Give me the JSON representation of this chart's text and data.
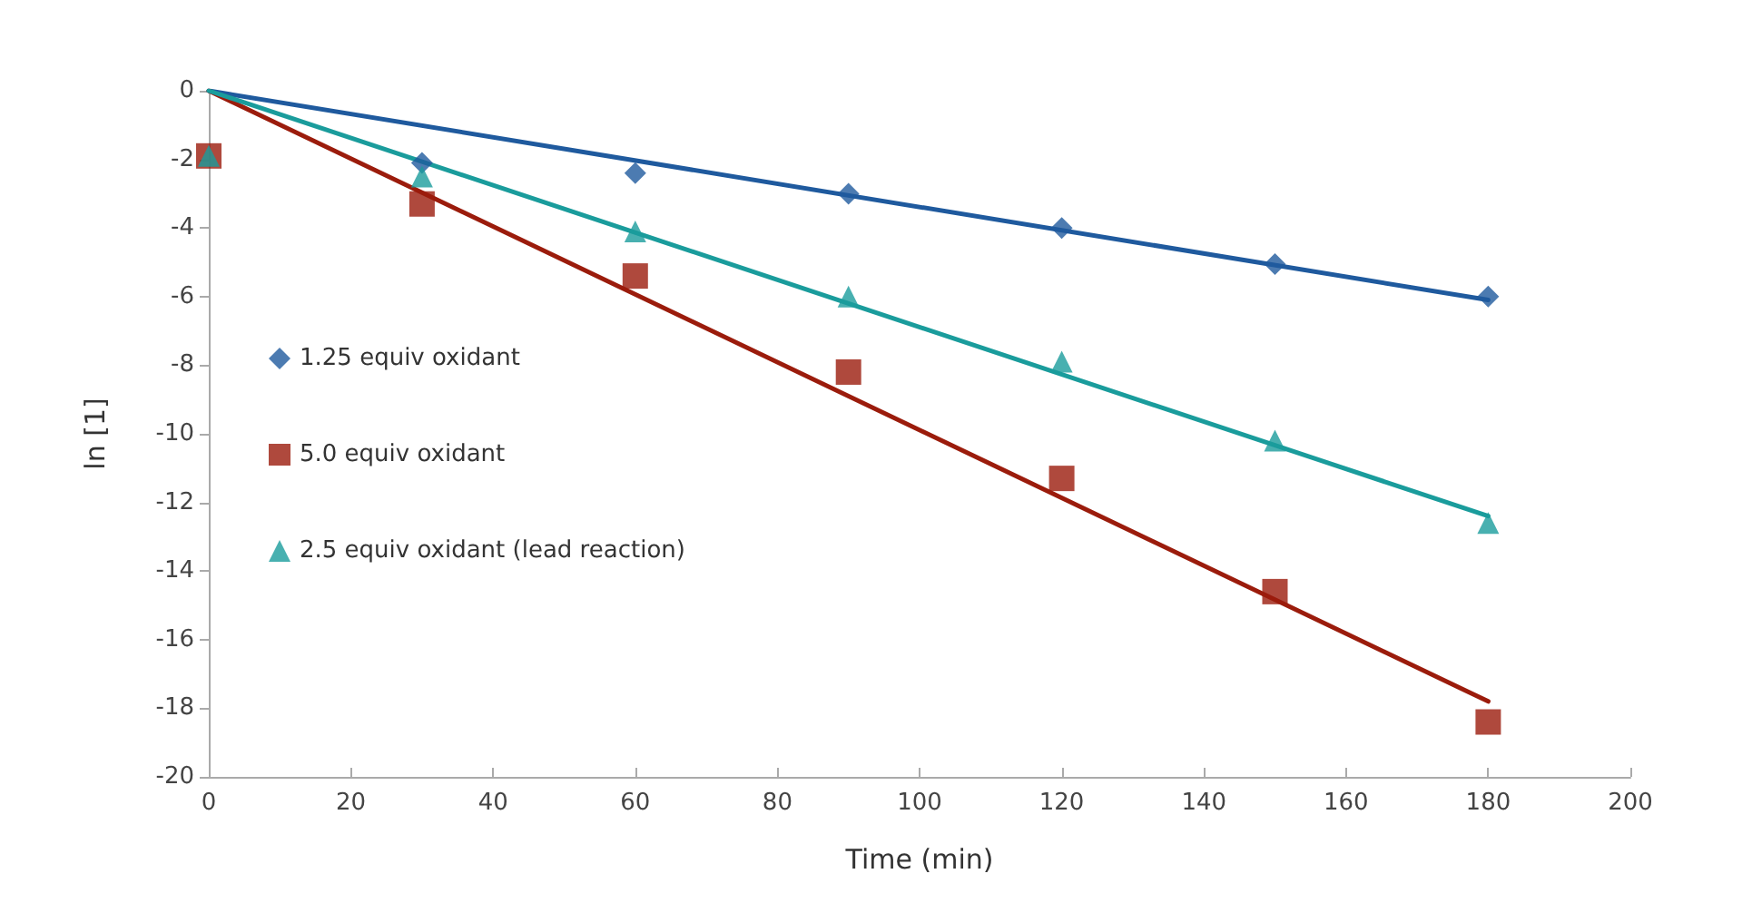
{
  "chart_data": {
    "type": "scatter",
    "xlabel": "Time (min)",
    "ylabel": "ln [1]",
    "xlim": [
      0,
      200
    ],
    "xticks": [
      0,
      20,
      40,
      60,
      80,
      100,
      120,
      140,
      160,
      180,
      200
    ],
    "ylim": [
      -20,
      0
    ],
    "yticks": [
      -20,
      -18,
      -16,
      -14,
      -12,
      -10,
      -8,
      -6,
      -4,
      -2,
      0
    ],
    "grid": false,
    "legend": "left",
    "series": [
      {
        "name": "1.25 equiv oxidant",
        "color": "#1f5a9e",
        "marker": "diamond",
        "x": [
          30,
          60,
          90,
          120,
          150,
          180
        ],
        "values": [
          -2.1,
          -2.4,
          -3.0,
          -4.0,
          -5.05,
          -6.0
        ]
      },
      {
        "name": "5.0 equiv oxidant",
        "color": "#9b1c0c",
        "marker": "square",
        "x": [
          0,
          30,
          60,
          90,
          120,
          150,
          180
        ],
        "values": [
          -1.9,
          -3.3,
          -5.4,
          -8.2,
          -11.3,
          -14.6,
          -18.4
        ]
      },
      {
        "name": "2.5 equiv oxidant (lead reaction)",
        "color": "#1a9c9c",
        "marker": "triangle",
        "x": [
          0,
          30,
          60,
          90,
          120,
          150,
          180
        ],
        "values": [
          -1.9,
          -2.5,
          -4.1,
          -6.0,
          -7.9,
          -10.2,
          -12.6
        ]
      },
      {
        "type": "line",
        "color": "#1f5a9e",
        "x": [
          0,
          180
        ],
        "values": [
          0,
          -6.1
        ]
      },
      {
        "type": "line",
        "color": "#9b1c0c",
        "x": [
          0,
          180
        ],
        "values": [
          0,
          -17.8
        ]
      },
      {
        "type": "line",
        "color": "#1a9c9c",
        "x": [
          0,
          180
        ],
        "values": [
          0,
          -12.4
        ]
      }
    ]
  }
}
